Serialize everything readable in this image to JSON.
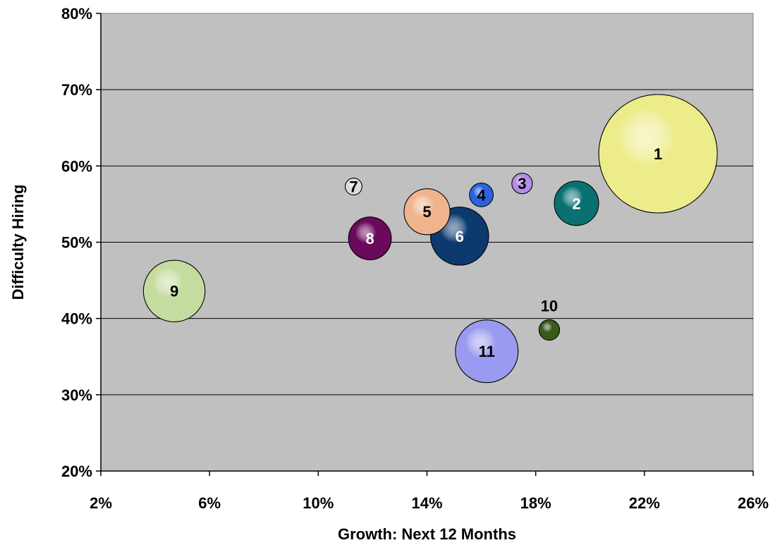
{
  "chart_data": {
    "type": "bubble",
    "title": "",
    "xlabel": "Growth: Next 12 Months",
    "ylabel": "Difficulty Hiring",
    "xlim": [
      2,
      26
    ],
    "ylim": [
      20,
      80
    ],
    "x_ticks": [
      2,
      6,
      10,
      14,
      18,
      22,
      26
    ],
    "x_tick_labels": [
      "2%",
      "6%",
      "10%",
      "14%",
      "18%",
      "22%",
      "26%"
    ],
    "y_ticks": [
      20,
      30,
      40,
      50,
      60,
      70,
      80
    ],
    "y_tick_labels": [
      "20%",
      "30%",
      "40%",
      "50%",
      "60%",
      "70%",
      "80%"
    ],
    "grid": "horizontal",
    "plot_background": "#c0c0c0",
    "points": [
      {
        "label": "1",
        "x": 22.5,
        "y": 61.6,
        "size": 100,
        "color": "#ecec8a",
        "label_color": "#000000"
      },
      {
        "label": "2",
        "x": 19.5,
        "y": 55.1,
        "size": 14,
        "color": "#0a7070",
        "label_color": "#ffffff"
      },
      {
        "label": "3",
        "x": 17.5,
        "y": 57.7,
        "size": 3,
        "color": "#b58ce8",
        "label_color": "#000000"
      },
      {
        "label": "4",
        "x": 16.0,
        "y": 56.2,
        "size": 4,
        "color": "#2a62e0",
        "label_color": "#000000"
      },
      {
        "label": "5",
        "x": 14.0,
        "y": 54.0,
        "size": 15,
        "color": "#f0b48c",
        "label_color": "#000000"
      },
      {
        "label": "6",
        "x": 15.2,
        "y": 50.8,
        "size": 24,
        "color": "#0c3a6e",
        "label_color": "#ffffff"
      },
      {
        "label": "7",
        "x": 11.3,
        "y": 57.3,
        "size": 2,
        "color": "#dcdcdc",
        "label_color": "#000000"
      },
      {
        "label": "8",
        "x": 11.9,
        "y": 50.5,
        "size": 13,
        "color": "#6a0a5c",
        "label_color": "#ffffff"
      },
      {
        "label": "9",
        "x": 4.7,
        "y": 43.6,
        "size": 27,
        "color": "#c5dca0",
        "label_color": "#000000"
      },
      {
        "label": "10",
        "x": 18.5,
        "y": 38.5,
        "size": 3,
        "color": "#3a5a1a",
        "label_color": "#000000"
      },
      {
        "label": "11",
        "x": 16.2,
        "y": 35.7,
        "size": 28,
        "color": "#9a9af0",
        "label_color": "#000000"
      }
    ]
  }
}
